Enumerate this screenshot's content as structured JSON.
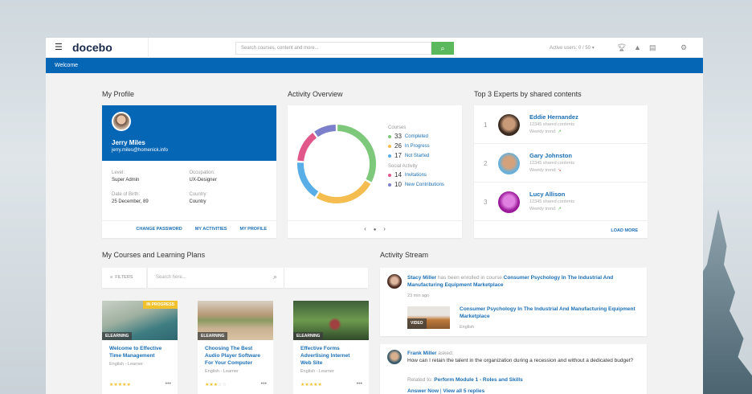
{
  "topbar": {
    "logo": "docebo",
    "search_placeholder": "Search courses, content and more...",
    "active_users": "Active users: 0 / 50 ▾"
  },
  "welcome": "Welcome",
  "profile": {
    "title": "My Profile",
    "name": "Jerry Miles",
    "email": "jerry.miles@homenick.info",
    "fields": [
      {
        "label": "Level:",
        "value": "Super Admin"
      },
      {
        "label": "Occupation:",
        "value": "UX-Designer"
      },
      {
        "label": "Date of Birth:",
        "value": "25 December, 89"
      },
      {
        "label": "Country:",
        "value": "Country"
      }
    ],
    "links": [
      "CHANGE PASSWORD",
      "MY ACTIVITIES",
      "MY PROFILE"
    ]
  },
  "activity": {
    "title": "Activity Overview",
    "courses_label": "Courses",
    "social_label": "Social Activity",
    "items": [
      {
        "value": 33,
        "label": "Completed",
        "color": "#7dc87a"
      },
      {
        "value": 26,
        "label": "In Progress",
        "color": "#f5bd4f"
      },
      {
        "value": 17,
        "label": "Not Started",
        "color": "#5aaee8"
      },
      {
        "value": 14,
        "label": "Invitations",
        "color": "#e2578a"
      },
      {
        "value": 10,
        "label": "New Contributions",
        "color": "#7b7fcc"
      }
    ]
  },
  "experts": {
    "title": "Top 3 Experts by shared contents",
    "load_more": "LOAD MORE",
    "list": [
      {
        "rank": "1",
        "name": "Eddie Hernandez",
        "shared": "12345 shared contents",
        "trend_label": "Weekly trend:",
        "trend": "up"
      },
      {
        "rank": "2",
        "name": "Gary Johnston",
        "shared": "12345 shared contents",
        "trend_label": "Weekly trend:",
        "trend": "down"
      },
      {
        "rank": "3",
        "name": "Lucy Allison",
        "shared": "12345 shared contents",
        "trend_label": "Weekly trend:",
        "trend": "up"
      }
    ]
  },
  "courses": {
    "title": "My Courses and Learning Plans",
    "filters": "FILTERS",
    "search_placeholder": "Search here...",
    "list": [
      {
        "title": "Welcome to Effective Time Management",
        "type": "ELEARNING",
        "badge": "IN PROGRESS",
        "meta": "English - Learner",
        "rating": 5
      },
      {
        "title": "Choosing The Best Audio Player Software For Your Computer",
        "type": "ELEARNING",
        "meta": "English - Learner",
        "rating": 3
      },
      {
        "title": "Effective Forms Advertising Internet Web Site",
        "type": "ELEARNING",
        "meta": "English - Learner",
        "rating": 5
      }
    ]
  },
  "stream": {
    "title": "Activity Stream",
    "item1": {
      "user": "Stacy Miller",
      "action": " has been enrolled in course ",
      "course": "Consumer Psychology In The Industrial And Manufacturing Equipment Marketplace",
      "time": "23 min ago",
      "media_tag": "VIDEO",
      "media_title": "Consumer Psychology In The Industrial And Manufacturing Equipment Marketplace",
      "media_lang": "English"
    },
    "item2": {
      "user": "Frank Miller",
      "action": " asked:",
      "question": "How can I retain the talent in the organization during a recession and without a dedicated budget?",
      "related_label": "Related to: ",
      "related": "Perform Module 1 - Roles and Skills",
      "answer": "Answer Now",
      "sep": " | ",
      "replies": "View all 5 replies"
    }
  }
}
